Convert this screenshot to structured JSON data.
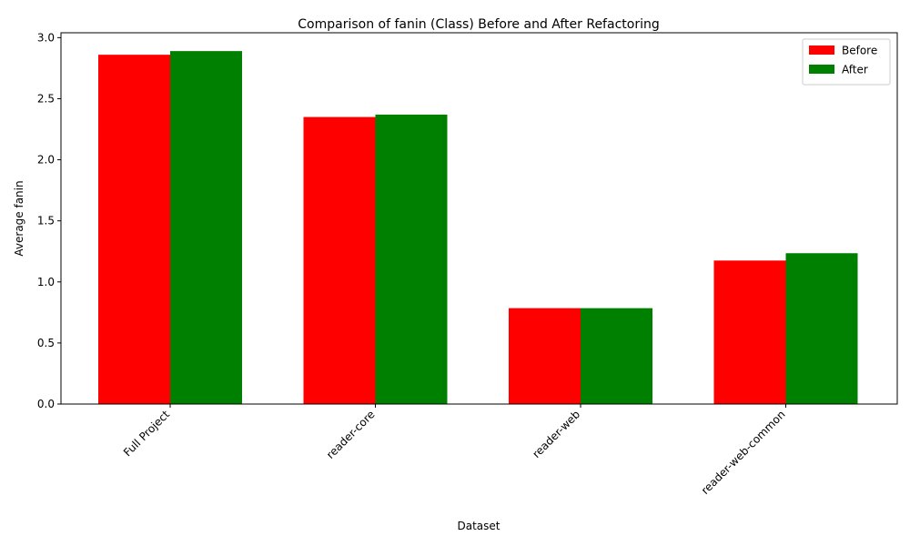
{
  "chart_data": {
    "type": "bar",
    "title": "Comparison of fanin (Class) Before and After Refactoring",
    "xlabel": "Dataset",
    "ylabel": "Average fanin",
    "categories": [
      "Full Project",
      "reader-core",
      "reader-web",
      "reader-web-common"
    ],
    "series": [
      {
        "name": "Before",
        "color": "#ff0000",
        "values": [
          2.86,
          2.35,
          0.785,
          1.175
        ]
      },
      {
        "name": "After",
        "color": "#008000",
        "values": [
          2.89,
          2.37,
          0.785,
          1.235
        ]
      }
    ],
    "ylim": [
      0,
      3.04
    ],
    "yticks": [
      0.0,
      0.5,
      1.0,
      1.5,
      2.0,
      2.5,
      3.0
    ],
    "ytick_labels": [
      "0.0",
      "0.5",
      "1.0",
      "1.5",
      "2.0",
      "2.5",
      "3.0"
    ],
    "grid": false,
    "legend_position": "top-right"
  }
}
